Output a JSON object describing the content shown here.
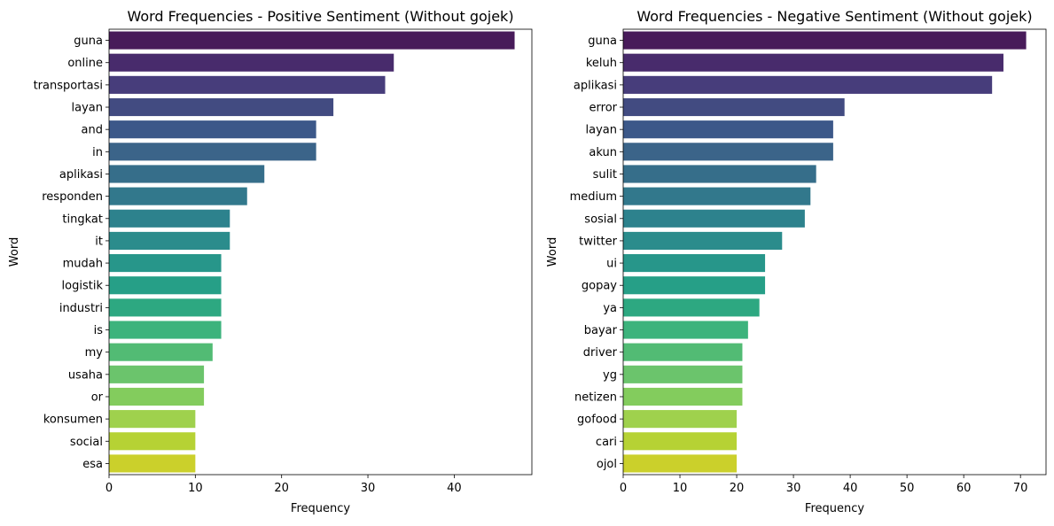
{
  "chart_data": [
    {
      "type": "bar",
      "orientation": "horizontal",
      "title": "Word Frequencies - Positive Sentiment (Without gojek)",
      "xlabel": "Frequency",
      "ylabel": "Word",
      "xlim": [
        0,
        49
      ],
      "xticks": [
        0,
        10,
        20,
        30,
        40
      ],
      "categories": [
        "guna",
        "online",
        "transportasi",
        "layan",
        "and",
        "in",
        "aplikasi",
        "responden",
        "tingkat",
        "it",
        "mudah",
        "logistik",
        "industri",
        "is",
        "my",
        "usaha",
        "or",
        "konsumen",
        "social",
        "esa"
      ],
      "values": [
        47,
        33,
        32,
        26,
        24,
        24,
        18,
        16,
        14,
        14,
        13,
        13,
        13,
        13,
        12,
        11,
        11,
        10,
        10,
        10
      ],
      "grid": false,
      "palette": "viridis"
    },
    {
      "type": "bar",
      "orientation": "horizontal",
      "title": "Word Frequencies - Negative Sentiment (Without gojek)",
      "xlabel": "Frequency",
      "ylabel": "Word",
      "xlim": [
        0,
        74.5
      ],
      "xticks": [
        0,
        10,
        20,
        30,
        40,
        50,
        60,
        70
      ],
      "categories": [
        "guna",
        "keluh",
        "aplikasi",
        "error",
        "layan",
        "akun",
        "sulit",
        "medium",
        "sosial",
        "twitter",
        "ui",
        "gopay",
        "ya",
        "bayar",
        "driver",
        "yg",
        "netizen",
        "gofood",
        "cari",
        "ojol"
      ],
      "values": [
        71,
        67,
        65,
        39,
        37,
        37,
        34,
        33,
        32,
        28,
        25,
        25,
        24,
        22,
        21,
        21,
        21,
        20,
        20,
        20
      ],
      "grid": false,
      "palette": "viridis"
    }
  ],
  "colors": {
    "palette": [
      "#481b5a",
      "#482b6c",
      "#473d7b",
      "#424b81",
      "#3c5889",
      "#3b6489",
      "#366e8a",
      "#32788c",
      "#2d828d",
      "#2b8c8c",
      "#27968a",
      "#269f87",
      "#2da881",
      "#3cb37c",
      "#52bb74",
      "#6bc46c",
      "#83cc5d",
      "#9fd14d",
      "#b6d234",
      "#cbd02b"
    ],
    "axis": "#000000",
    "background": "#ffffff"
  }
}
